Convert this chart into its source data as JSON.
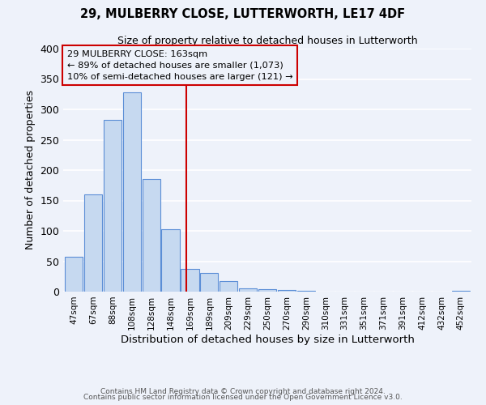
{
  "title": "29, MULBERRY CLOSE, LUTTERWORTH, LE17 4DF",
  "subtitle": "Size of property relative to detached houses in Lutterworth",
  "xlabel": "Distribution of detached houses by size in Lutterworth",
  "ylabel": "Number of detached properties",
  "bin_labels": [
    "47sqm",
    "67sqm",
    "88sqm",
    "108sqm",
    "128sqm",
    "148sqm",
    "169sqm",
    "189sqm",
    "209sqm",
    "229sqm",
    "250sqm",
    "270sqm",
    "290sqm",
    "310sqm",
    "331sqm",
    "351sqm",
    "371sqm",
    "391sqm",
    "412sqm",
    "432sqm",
    "452sqm"
  ],
  "bar_heights": [
    57,
    160,
    283,
    328,
    185,
    103,
    38,
    31,
    18,
    6,
    4,
    3,
    1,
    0,
    0,
    0,
    0,
    0,
    0,
    0,
    2
  ],
  "bar_color": "#c6d9f0",
  "bar_edgecolor": "#5b8ed6",
  "property_line_x": 5.83,
  "property_line_color": "#cc0000",
  "annotation_title": "29 MULBERRY CLOSE: 163sqm",
  "annotation_line1": "← 89% of detached houses are smaller (1,073)",
  "annotation_line2": "10% of semi-detached houses are larger (121) →",
  "annotation_box_edgecolor": "#cc0000",
  "ylim": [
    0,
    400
  ],
  "yticks": [
    0,
    50,
    100,
    150,
    200,
    250,
    300,
    350,
    400
  ],
  "footer1": "Contains HM Land Registry data © Crown copyright and database right 2024.",
  "footer2": "Contains public sector information licensed under the Open Government Licence v3.0.",
  "background_color": "#eef2fa",
  "grid_color": "#ffffff"
}
